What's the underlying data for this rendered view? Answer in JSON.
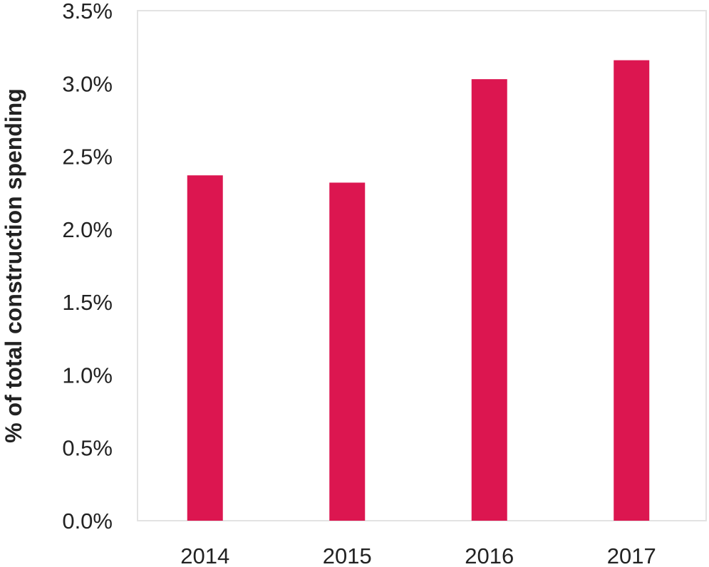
{
  "chart_data": {
    "type": "bar",
    "categories": [
      "2014",
      "2015",
      "2016",
      "2017"
    ],
    "values": [
      2.37,
      2.32,
      3.03,
      3.16
    ],
    "ylabel": "% of total construction spending",
    "xlabel": "",
    "ylim": [
      0,
      3.5
    ],
    "yticks": [
      {
        "value": 0.0,
        "label": "0.0%"
      },
      {
        "value": 0.5,
        "label": "0.5%"
      },
      {
        "value": 1.0,
        "label": "1.0%"
      },
      {
        "value": 1.5,
        "label": "1.5%"
      },
      {
        "value": 2.0,
        "label": "2.0%"
      },
      {
        "value": 2.5,
        "label": "2.5%"
      },
      {
        "value": 3.0,
        "label": "3.0%"
      },
      {
        "value": 3.5,
        "label": "3.5%"
      }
    ],
    "grid": false,
    "legend": "none",
    "colors": {
      "bar": "#dc1650",
      "frame": "#e3e3e3",
      "text": "#222222"
    }
  }
}
